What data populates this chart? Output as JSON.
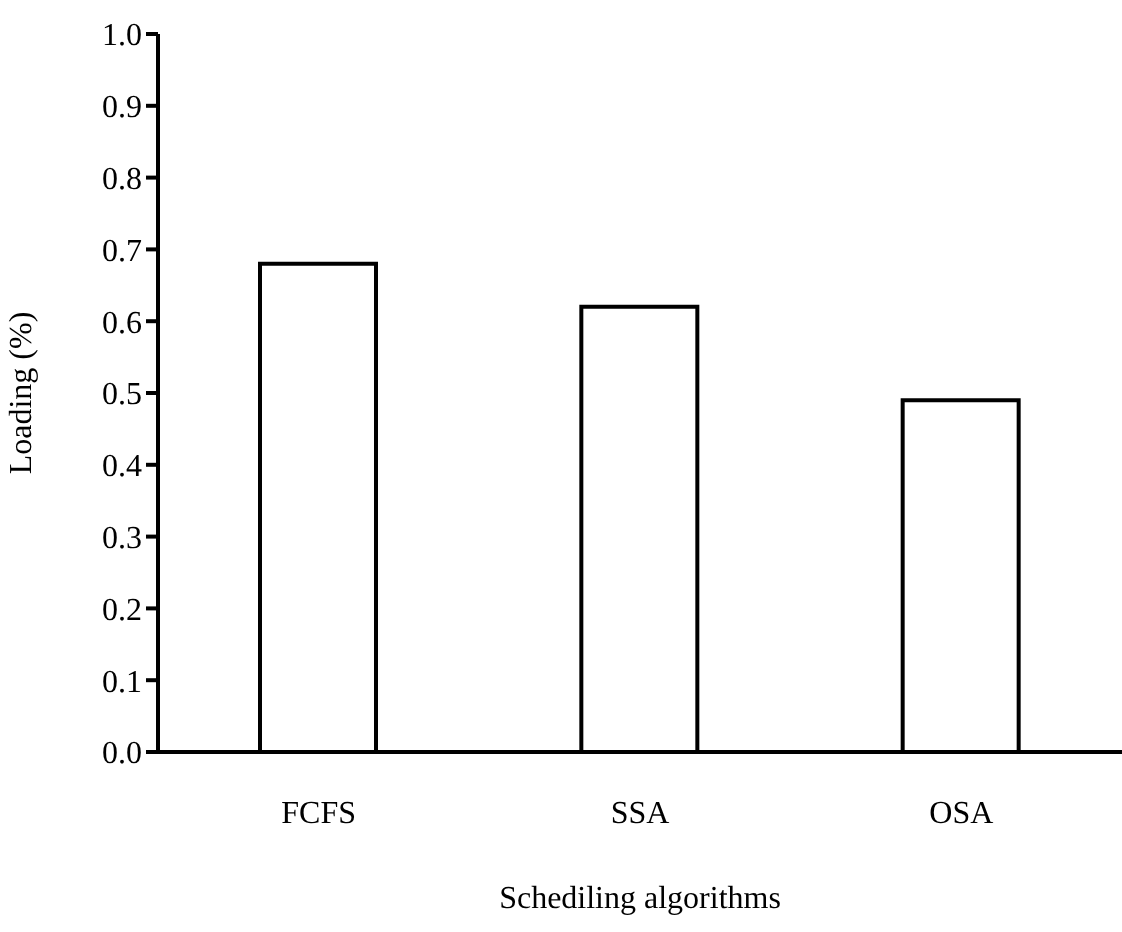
{
  "chart_data": {
    "type": "bar",
    "xlabel": "Schediling algorithms",
    "ylabel": "Loading (%)",
    "categories": [
      "FCFS",
      "SSA",
      "OSA"
    ],
    "values": [
      0.68,
      0.62,
      0.49
    ],
    "color": "#ffffff",
    "ylim": [
      0,
      1
    ],
    "yticks": [
      {
        "value": 0,
        "label": "0.0"
      },
      0.1,
      0.2,
      0.3,
      0.4,
      0.5,
      0.6,
      0.7,
      0.8,
      0.9,
      {
        "value": 1,
        "label": "1.0"
      }
    ],
    "grid": false
  }
}
